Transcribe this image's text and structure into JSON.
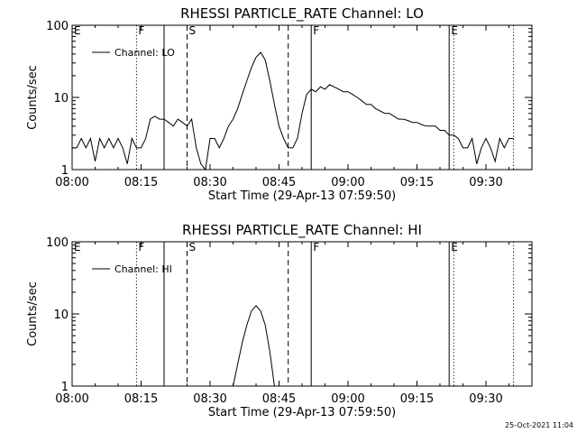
{
  "chart_data": [
    {
      "type": "line",
      "title": "RHESSI PARTICLE_RATE Channel: LO",
      "xlabel": "Start Time (29-Apr-13 07:59:50)",
      "ylabel": "Counts/sec",
      "yscale": "log",
      "ylim": [
        1,
        100
      ],
      "xlim_minutes": [
        0,
        100
      ],
      "xticks": [
        "08:00",
        "08:15",
        "08:30",
        "08:45",
        "09:00",
        "09:15",
        "09:30"
      ],
      "yticks": [
        "1",
        "10",
        "100"
      ],
      "legend": {
        "label": "Channel: LO",
        "placement": "top-left"
      },
      "series": [
        {
          "name": "Channel: LO",
          "x": [
            0,
            1,
            2,
            3,
            4,
            5,
            6,
            7,
            8,
            9,
            10,
            11,
            12,
            13,
            14,
            15,
            16,
            17,
            18,
            19,
            20,
            21,
            22,
            23,
            24,
            25,
            26,
            27,
            28,
            29,
            30,
            31,
            32,
            33,
            34,
            35,
            36,
            37,
            38,
            39,
            40,
            41,
            42,
            43,
            44,
            45,
            46,
            47,
            48,
            49,
            50,
            51,
            52,
            53,
            54,
            55,
            56,
            57,
            58,
            59,
            60,
            61,
            62,
            63,
            64,
            65,
            66,
            67,
            68,
            69,
            70,
            71,
            72,
            73,
            74,
            75,
            76,
            77,
            78,
            79,
            80,
            81,
            82,
            83,
            84,
            85,
            86,
            87,
            88,
            89,
            90,
            91,
            92,
            93,
            94,
            95,
            96
          ],
          "y": [
            2,
            2,
            2.7,
            2,
            2.7,
            1.3,
            2.7,
            2,
            2.7,
            2,
            2.7,
            2,
            1.2,
            2.7,
            2,
            2,
            2.7,
            5,
            5.5,
            5,
            5,
            4.5,
            4,
            5,
            4.5,
            4,
            5,
            2,
            1.2,
            1,
            2.7,
            2.7,
            2,
            2.7,
            4,
            5,
            7,
            11,
            17,
            26,
            36,
            42,
            33,
            17,
            8,
            4,
            2.7,
            2,
            2,
            2.7,
            6,
            11,
            13,
            12,
            14,
            13,
            15,
            14,
            13,
            12,
            12,
            11,
            10,
            9,
            8,
            8,
            7,
            6.5,
            6,
            6,
            5.5,
            5,
            5,
            4.8,
            4.5,
            4.5,
            4.2,
            4,
            4,
            4,
            3.5,
            3.5,
            3,
            3,
            2.7,
            2,
            2,
            2.7,
            1.2,
            2,
            2.7,
            2,
            1.3,
            2.7,
            2,
            2.7,
            2.7
          ]
        }
      ],
      "events": [
        {
          "label": "E",
          "minute": 0,
          "style": "none"
        },
        {
          "label": "F",
          "minute": 14,
          "style": "dotted"
        },
        {
          "label": "",
          "minute": 20,
          "style": "solid"
        },
        {
          "label": "S",
          "minute": 25,
          "style": "dashed"
        },
        {
          "label": "",
          "minute": 47,
          "style": "dashed"
        },
        {
          "label": "F",
          "minute": 52,
          "style": "solid"
        },
        {
          "label": "E",
          "minute": 82,
          "style": "solid"
        },
        {
          "label": "",
          "minute": 83,
          "style": "dotted"
        },
        {
          "label": "",
          "minute": 96,
          "style": "dotted"
        }
      ]
    },
    {
      "type": "line",
      "title": "RHESSI PARTICLE_RATE Channel: HI",
      "xlabel": "Start Time (29-Apr-13 07:59:50)",
      "ylabel": "Counts/sec",
      "yscale": "log",
      "ylim": [
        1,
        100
      ],
      "xlim_minutes": [
        0,
        100
      ],
      "xticks": [
        "08:00",
        "08:15",
        "08:30",
        "08:45",
        "09:00",
        "09:15",
        "09:30"
      ],
      "yticks": [
        "1",
        "10",
        "100"
      ],
      "legend": {
        "label": "Channel: HI",
        "placement": "top-left"
      },
      "series": [
        {
          "name": "Channel: HI",
          "x": [
            35,
            36,
            37,
            38,
            39,
            40,
            41,
            42,
            43,
            44
          ],
          "y": [
            1,
            2,
            4,
            7,
            11,
            13,
            11,
            7,
            3,
            1
          ]
        }
      ],
      "events": [
        {
          "label": "E",
          "minute": 0,
          "style": "none"
        },
        {
          "label": "F",
          "minute": 14,
          "style": "dotted"
        },
        {
          "label": "",
          "minute": 20,
          "style": "solid"
        },
        {
          "label": "S",
          "minute": 25,
          "style": "dashed"
        },
        {
          "label": "",
          "minute": 47,
          "style": "dashed"
        },
        {
          "label": "F",
          "minute": 52,
          "style": "solid"
        },
        {
          "label": "E",
          "minute": 82,
          "style": "solid"
        },
        {
          "label": "",
          "minute": 83,
          "style": "dotted"
        },
        {
          "label": "",
          "minute": 96,
          "style": "dotted"
        }
      ]
    }
  ],
  "footer": {
    "stamp": "25-Oct-2021 11:04"
  }
}
